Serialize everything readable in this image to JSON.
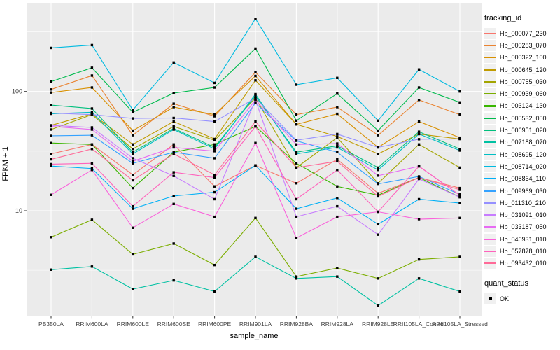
{
  "chart_data": {
    "type": "line",
    "title": "",
    "xlabel": "sample_name",
    "ylabel": "FPKM + 1",
    "y_scale": "log10",
    "ylim": [
      1.3,
      550
    ],
    "y_ticks": [
      10,
      100
    ],
    "grid": true,
    "legend_position": "right",
    "marker": "black-square",
    "panel_bg": "#EBEBEB",
    "grid_color": "#FFFFFF",
    "categories": [
      "PB350LA",
      "RRIM600LA",
      "RRIM600LE",
      "RRIM600SE",
      "RRIM600PE",
      "RRIM901LA",
      "RRIM928BA",
      "RRIM928LA",
      "RRIM928LE",
      "RRII105LA_Control",
      "RRII105LA_Stressed"
    ],
    "series": [
      {
        "name": "Hb_000077_230",
        "color": "#F8766D",
        "values": [
          30,
          36,
          20,
          36,
          16,
          24,
          17,
          27,
          14,
          19,
          15.5
        ]
      },
      {
        "name": "Hb_000283_070",
        "color": "#EA8331",
        "values": [
          104,
          136,
          43,
          79,
          62,
          145,
          64,
          74,
          43,
          85,
          64
        ]
      },
      {
        "name": "Hb_000322_100",
        "color": "#D89000",
        "values": [
          98,
          108,
          47,
          74,
          64,
          135,
          53,
          65,
          34,
          56,
          41
        ]
      },
      {
        "name": "Hb_000645_120",
        "color": "#C09B00",
        "values": [
          52,
          65,
          36,
          56,
          40,
          124,
          53,
          42,
          30,
          44,
          40
        ]
      },
      {
        "name": "Hb_000755_030",
        "color": "#A3A500",
        "values": [
          48,
          64,
          33,
          51,
          39,
          88,
          23,
          41,
          17,
          36,
          23
        ]
      },
      {
        "name": "Hb_000939_060",
        "color": "#7CAE00",
        "values": [
          6,
          8.4,
          4.3,
          5.3,
          3.5,
          8.7,
          2.8,
          3.3,
          2.7,
          3.9,
          4.1
        ]
      },
      {
        "name": "Hb_003124_130",
        "color": "#39B600",
        "values": [
          37,
          36,
          15.5,
          31,
          36,
          51,
          25,
          16,
          13.5,
          19,
          13
        ]
      },
      {
        "name": "Hb_005532_050",
        "color": "#00BB4E",
        "values": [
          121,
          158,
          67,
          97,
          108,
          229,
          57,
          96,
          47,
          108,
          81
        ]
      },
      {
        "name": "Hb_006951_020",
        "color": "#00BF7D",
        "values": [
          77,
          72,
          31,
          49,
          34,
          92,
          31,
          35,
          23,
          46,
          33
        ]
      },
      {
        "name": "Hb_007188_070",
        "color": "#00C1A3",
        "values": [
          3.2,
          3.4,
          2.2,
          2.6,
          2.1,
          4.1,
          2.7,
          2.8,
          1.6,
          2.7,
          2.1
        ]
      },
      {
        "name": "Hb_008695_120",
        "color": "#00BFC4",
        "values": [
          65,
          67,
          30,
          48,
          33,
          95,
          30,
          34,
          22,
          44,
          32
        ]
      },
      {
        "name": "Hb_008714_020",
        "color": "#00BAE0",
        "values": [
          232,
          245,
          70,
          175,
          118,
          408,
          114,
          130,
          57,
          153,
          100
        ]
      },
      {
        "name": "Hb_008864_110",
        "color": "#00B0F6",
        "values": [
          23.7,
          22.6,
          10.4,
          13.3,
          14.3,
          24,
          10.4,
          12.8,
          7.7,
          12.5,
          11.6
        ]
      },
      {
        "name": "Hb_009969_030",
        "color": "#35A2FF",
        "values": [
          42.5,
          43,
          25,
          31,
          27.6,
          80,
          38.6,
          31,
          16.8,
          19.4,
          13.7
        ]
      },
      {
        "name": "Hb_011310_210",
        "color": "#9590FF",
        "values": [
          66,
          64,
          59.5,
          60,
          56,
          88,
          39,
          44,
          34,
          39.8,
          40
        ]
      },
      {
        "name": "Hb_031091_010",
        "color": "#C77CFF",
        "values": [
          52,
          50,
          27.6,
          19.6,
          12.5,
          85,
          8.9,
          10.9,
          6.3,
          18.5,
          13
        ]
      },
      {
        "name": "Hb_033187_050",
        "color": "#E76BF3",
        "values": [
          51,
          48,
          26,
          34,
          31.6,
          85,
          36,
          36.6,
          19.7,
          23.6,
          13.5
        ]
      },
      {
        "name": "Hb_046931_010",
        "color": "#FA62DB",
        "values": [
          13.6,
          22,
          7.2,
          11.4,
          8.9,
          37,
          5.9,
          8.9,
          9.8,
          8.5,
          8.7
        ]
      },
      {
        "name": "Hb_057878_010",
        "color": "#FF62BC",
        "values": [
          24.6,
          25,
          10.9,
          21,
          19,
          51,
          12.5,
          22,
          9.8,
          23.6,
          13.5
        ]
      },
      {
        "name": "Hb_093432_010",
        "color": "#FF6A98",
        "values": [
          27,
          33,
          18,
          30,
          20,
          56,
          23,
          26,
          13.2,
          19,
          15
        ]
      }
    ],
    "legend": {
      "color_title": "tracking_id",
      "shape_title": "quant_status",
      "shape_items": [
        {
          "label": "OK"
        }
      ]
    }
  }
}
